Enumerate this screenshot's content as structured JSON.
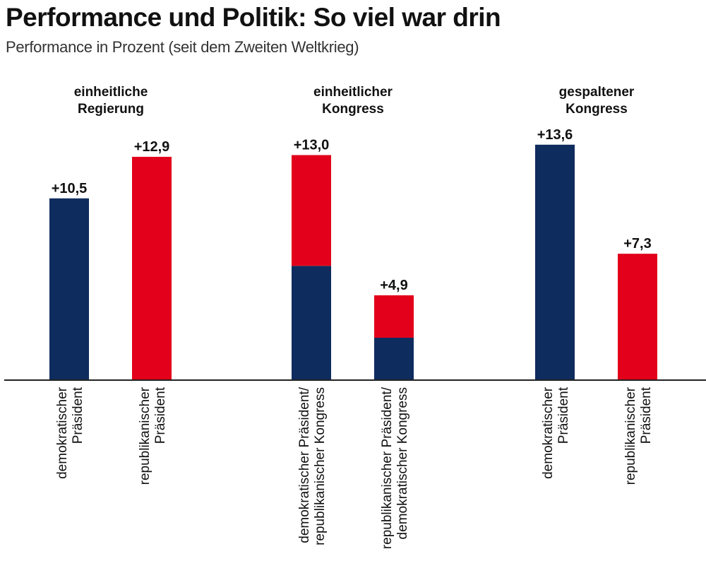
{
  "header": {
    "title": "Performance und Politik: So viel war drin",
    "subtitle": "Performance in Prozent (seit dem Zweiten Weltkrieg)"
  },
  "colors": {
    "democratic": "#0f2c5e",
    "republican": "#e2001a",
    "axis": "#222222"
  },
  "chart_data": {
    "type": "bar",
    "title": "Performance und Politik: So viel war drin",
    "subtitle": "Performance in Prozent (seit dem Zweiten Weltkrieg)",
    "xlabel": "",
    "ylabel": "Performance in Prozent",
    "ylim": [
      0,
      14
    ],
    "grid": false,
    "legend": "none",
    "groups": [
      {
        "label_lines": [
          "einheitliche",
          "Regierung"
        ],
        "bars": [
          {
            "category_lines": [
              "demokratischer",
              "Präsident"
            ],
            "value": 10.5,
            "value_label": "+10,5",
            "segments": [
              {
                "party": "democratic",
                "value": 10.5
              }
            ]
          },
          {
            "category_lines": [
              "republikanischer",
              "Präsident"
            ],
            "value": 12.9,
            "value_label": "+12,9",
            "segments": [
              {
                "party": "republican",
                "value": 12.9
              }
            ]
          }
        ]
      },
      {
        "label_lines": [
          "einheitlicher",
          "Kongress"
        ],
        "bars": [
          {
            "category_lines": [
              "demokratischer Präsident/",
              "republikanischer Kongress"
            ],
            "value": 13.0,
            "value_label": "+13,0",
            "segments": [
              {
                "party": "democratic",
                "value": 6.6
              },
              {
                "party": "republican",
                "value": 6.4
              }
            ]
          },
          {
            "category_lines": [
              "republikanischer Präsident/",
              "demokratischer Kongress"
            ],
            "value": 4.9,
            "value_label": "+4,9",
            "segments": [
              {
                "party": "democratic",
                "value": 2.45
              },
              {
                "party": "republican",
                "value": 2.45
              }
            ]
          }
        ]
      },
      {
        "label_lines": [
          "gespaltener",
          "Kongress"
        ],
        "bars": [
          {
            "category_lines": [
              "demokratischer",
              "Präsident"
            ],
            "value": 13.6,
            "value_label": "+13,6",
            "segments": [
              {
                "party": "democratic",
                "value": 13.6
              }
            ]
          },
          {
            "category_lines": [
              "republikanischer",
              "Präsident"
            ],
            "value": 7.3,
            "value_label": "+7,3",
            "segments": [
              {
                "party": "republican",
                "value": 7.3
              }
            ]
          }
        ]
      }
    ]
  }
}
